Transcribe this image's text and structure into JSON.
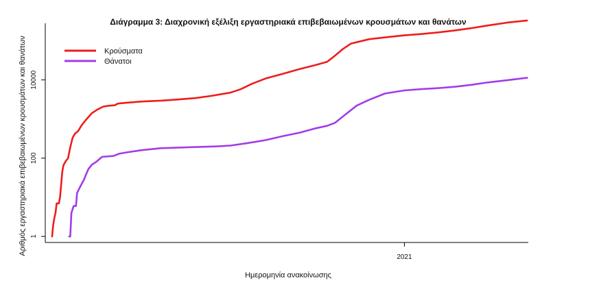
{
  "chart_data": {
    "type": "line",
    "title": "Διάγραμμα 3: Διαχρονική εξέλιξη εργαστηριακά επιβεβαιωμένων κρουσμάτων και θανάτων",
    "xlabel": "Ημερομηνία ανακοίνωσης",
    "ylabel": "Αριθμός εργαστηριακά επιβεβαιωμένων κρουσμάτων και θανάτων",
    "y_scale": "log",
    "ylim": [
      0.7,
      280000
    ],
    "y_ticks": [
      {
        "value": 1,
        "label": "1"
      },
      {
        "value": 100,
        "label": "100"
      },
      {
        "value": 10000,
        "label": "10000"
      }
    ],
    "xlim": [
      "2020-02-20",
      "2021-04-20"
    ],
    "x_ticks": [
      {
        "value": "2021-01-01",
        "label": "2021"
      }
    ],
    "legend_position": "top-left",
    "grid": false,
    "series": [
      {
        "name": "Κρούσματα",
        "color": "#ee1c1c",
        "points": [
          [
            "2020-02-26",
            1
          ],
          [
            "2020-02-27",
            2
          ],
          [
            "2020-02-28",
            3
          ],
          [
            "2020-02-29",
            4
          ],
          [
            "2020-03-01",
            7
          ],
          [
            "2020-03-03",
            7
          ],
          [
            "2020-03-04",
            10
          ],
          [
            "2020-03-06",
            45
          ],
          [
            "2020-03-07",
            66
          ],
          [
            "2020-03-09",
            84
          ],
          [
            "2020-03-11",
            99
          ],
          [
            "2020-03-13",
            190
          ],
          [
            "2020-03-15",
            331
          ],
          [
            "2020-03-17",
            418
          ],
          [
            "2020-03-20",
            495
          ],
          [
            "2020-03-23",
            695
          ],
          [
            "2020-03-27",
            966
          ],
          [
            "2020-04-01",
            1415
          ],
          [
            "2020-04-06",
            1755
          ],
          [
            "2020-04-11",
            2081
          ],
          [
            "2020-04-16",
            2192
          ],
          [
            "2020-04-21",
            2245
          ],
          [
            "2020-04-24",
            2490
          ],
          [
            "2020-05-01",
            2600
          ],
          [
            "2020-05-15",
            2800
          ],
          [
            "2020-06-01",
            2950
          ],
          [
            "2020-06-15",
            3150
          ],
          [
            "2020-07-01",
            3430
          ],
          [
            "2020-07-15",
            3900
          ],
          [
            "2020-08-01",
            4740
          ],
          [
            "2020-08-10",
            5800
          ],
          [
            "2020-08-20",
            8000
          ],
          [
            "2020-09-01",
            10900
          ],
          [
            "2020-09-15",
            14000
          ],
          [
            "2020-10-01",
            19000
          ],
          [
            "2020-10-15",
            24000
          ],
          [
            "2020-10-25",
            29000
          ],
          [
            "2020-11-01",
            42000
          ],
          [
            "2020-11-08",
            62000
          ],
          [
            "2020-11-15",
            85000
          ],
          [
            "2020-11-22",
            95000
          ],
          [
            "2020-12-01",
            110000
          ],
          [
            "2020-12-15",
            122000
          ],
          [
            "2021-01-01",
            138000
          ],
          [
            "2021-01-15",
            148000
          ],
          [
            "2021-02-01",
            165000
          ],
          [
            "2021-02-15",
            185000
          ],
          [
            "2021-03-01",
            210000
          ],
          [
            "2021-03-15",
            245000
          ],
          [
            "2021-04-01",
            290000
          ],
          [
            "2021-04-19",
            330000
          ]
        ]
      },
      {
        "name": "Θάνατοι",
        "color": "#a23be8",
        "points": [
          [
            "2020-03-12",
            1
          ],
          [
            "2020-03-13",
            1
          ],
          [
            "2020-03-14",
            4
          ],
          [
            "2020-03-16",
            6
          ],
          [
            "2020-03-18",
            6
          ],
          [
            "2020-03-19",
            13
          ],
          [
            "2020-03-21",
            17
          ],
          [
            "2020-03-23",
            22
          ],
          [
            "2020-03-25",
            28
          ],
          [
            "2020-03-27",
            39
          ],
          [
            "2020-03-29",
            53
          ],
          [
            "2020-04-01",
            68
          ],
          [
            "2020-04-05",
            81
          ],
          [
            "2020-04-10",
            108
          ],
          [
            "2020-04-20",
            114
          ],
          [
            "2020-04-25",
            130
          ],
          [
            "2020-05-01",
            140
          ],
          [
            "2020-05-15",
            160
          ],
          [
            "2020-06-01",
            180
          ],
          [
            "2020-07-01",
            192
          ],
          [
            "2020-07-20",
            200
          ],
          [
            "2020-08-01",
            210
          ],
          [
            "2020-08-15",
            240
          ],
          [
            "2020-09-01",
            290
          ],
          [
            "2020-09-15",
            360
          ],
          [
            "2020-10-01",
            450
          ],
          [
            "2020-10-15",
            580
          ],
          [
            "2020-10-25",
            670
          ],
          [
            "2020-11-01",
            800
          ],
          [
            "2020-11-10",
            1300
          ],
          [
            "2020-11-20",
            2200
          ],
          [
            "2020-12-01",
            3100
          ],
          [
            "2020-12-15",
            4500
          ],
          [
            "2021-01-01",
            5400
          ],
          [
            "2021-01-15",
            5800
          ],
          [
            "2021-02-01",
            6200
          ],
          [
            "2021-02-15",
            6700
          ],
          [
            "2021-03-01",
            7500
          ],
          [
            "2021-03-15",
            8600
          ],
          [
            "2021-04-01",
            9800
          ],
          [
            "2021-04-19",
            11300
          ]
        ]
      }
    ]
  }
}
